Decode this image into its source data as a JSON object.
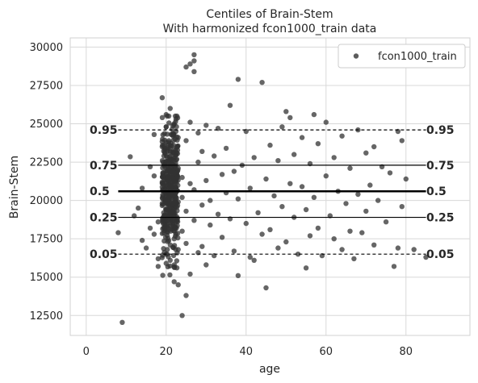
{
  "chart_data": {
    "type": "scatter",
    "title": "Centiles of Brain-Stem",
    "subtitle": "With harmonized fcon1000_train data",
    "xlabel": "age",
    "ylabel": "Brain-Stem",
    "xlim": [
      -4,
      96
    ],
    "ylim": [
      11200,
      30600
    ],
    "x_ticks": [
      0,
      20,
      40,
      60,
      80
    ],
    "y_ticks": [
      12500,
      15000,
      17500,
      20000,
      22500,
      25000,
      27500,
      30000
    ],
    "x_tick_labels": [
      "0",
      "20",
      "40",
      "60",
      "80"
    ],
    "y_tick_labels": [
      "12500",
      "15000",
      "17500",
      "20000",
      "22500",
      "25000",
      "27500",
      "30000"
    ],
    "grid": true,
    "legend": {
      "position": "top-right",
      "entries": [
        "fcon1000_train"
      ]
    },
    "point_color": "#333333",
    "series": [
      {
        "name": "fcon1000_train",
        "points": [
          [
            9,
            12050
          ],
          [
            8,
            17900
          ],
          [
            11,
            22850
          ],
          [
            12,
            19000
          ],
          [
            13,
            19500
          ],
          [
            14,
            17400
          ],
          [
            14,
            20800
          ],
          [
            15,
            16900
          ],
          [
            16,
            18200
          ],
          [
            16,
            22200
          ],
          [
            17,
            17800
          ],
          [
            17,
            21600
          ],
          [
            17,
            24300
          ],
          [
            18,
            18600
          ],
          [
            18,
            15700
          ],
          [
            18,
            16200
          ],
          [
            19,
            26700
          ],
          [
            19,
            19800
          ],
          [
            19,
            21200
          ],
          [
            19,
            23500
          ],
          [
            20,
            25600
          ],
          [
            20,
            24800
          ],
          [
            20,
            16500
          ],
          [
            20,
            15900
          ],
          [
            20,
            18900
          ],
          [
            20,
            20300
          ],
          [
            21,
            26000
          ],
          [
            21,
            17100
          ],
          [
            21,
            22700
          ],
          [
            21,
            19400
          ],
          [
            21,
            21800
          ],
          [
            21,
            16100
          ],
          [
            22,
            25000
          ],
          [
            22,
            17500
          ],
          [
            22,
            20600
          ],
          [
            22,
            14700
          ],
          [
            22,
            23300
          ],
          [
            22,
            18300
          ],
          [
            23,
            14500
          ],
          [
            23,
            19900
          ],
          [
            23,
            22100
          ],
          [
            23,
            16800
          ],
          [
            23,
            24100
          ],
          [
            24,
            12500
          ],
          [
            24,
            21500
          ],
          [
            24,
            18000
          ],
          [
            24,
            20200
          ],
          [
            25,
            28700
          ],
          [
            25,
            13800
          ],
          [
            25,
            19300
          ],
          [
            25,
            23900
          ],
          [
            25,
            17200
          ],
          [
            26,
            28900
          ],
          [
            26,
            21100
          ],
          [
            26,
            15200
          ],
          [
            26,
            25100
          ],
          [
            27,
            29500
          ],
          [
            27,
            28400
          ],
          [
            27,
            29100
          ],
          [
            27,
            20700
          ],
          [
            27,
            18700
          ],
          [
            28,
            24400
          ],
          [
            28,
            22500
          ],
          [
            28,
            16600
          ],
          [
            29,
            19700
          ],
          [
            29,
            17000
          ],
          [
            29,
            23200
          ],
          [
            30,
            21300
          ],
          [
            30,
            15800
          ],
          [
            30,
            24900
          ],
          [
            31,
            18400
          ],
          [
            31,
            20000
          ],
          [
            32,
            22900
          ],
          [
            32,
            16400
          ],
          [
            33,
            19100
          ],
          [
            33,
            24700
          ],
          [
            34,
            21700
          ],
          [
            34,
            17600
          ],
          [
            35,
            20500
          ],
          [
            35,
            23400
          ],
          [
            36,
            26200
          ],
          [
            36,
            18800
          ],
          [
            37,
            21900
          ],
          [
            37,
            16700
          ],
          [
            38,
            27900
          ],
          [
            38,
            15100
          ],
          [
            38,
            20100
          ],
          [
            39,
            22300
          ],
          [
            40,
            18500
          ],
          [
            40,
            24500
          ],
          [
            41,
            16300
          ],
          [
            41,
            20800
          ],
          [
            42,
            16100
          ],
          [
            42,
            22800
          ],
          [
            43,
            19200
          ],
          [
            44,
            27700
          ],
          [
            44,
            17800
          ],
          [
            45,
            14300
          ],
          [
            45,
            21400
          ],
          [
            46,
            23600
          ],
          [
            46,
            18100
          ],
          [
            47,
            20300
          ],
          [
            48,
            16900
          ],
          [
            48,
            22600
          ],
          [
            49,
            24800
          ],
          [
            49,
            19600
          ],
          [
            50,
            25800
          ],
          [
            50,
            17300
          ],
          [
            51,
            21100
          ],
          [
            51,
            25400
          ],
          [
            52,
            18900
          ],
          [
            52,
            23000
          ],
          [
            53,
            16500
          ],
          [
            54,
            20900
          ],
          [
            54,
            24100
          ],
          [
            55,
            19400
          ],
          [
            55,
            15600
          ],
          [
            56,
            22400
          ],
          [
            56,
            17700
          ],
          [
            57,
            25600
          ],
          [
            57,
            20200
          ],
          [
            58,
            18200
          ],
          [
            58,
            23700
          ],
          [
            59,
            16400
          ],
          [
            60,
            25100
          ],
          [
            60,
            21600
          ],
          [
            61,
            19000
          ],
          [
            62,
            22800
          ],
          [
            62,
            17500
          ],
          [
            63,
            20600
          ],
          [
            64,
            24200
          ],
          [
            64,
            16800
          ],
          [
            65,
            19800
          ],
          [
            66,
            22100
          ],
          [
            66,
            18000
          ],
          [
            67,
            16200
          ],
          [
            68,
            24600
          ],
          [
            68,
            20400
          ],
          [
            69,
            17900
          ],
          [
            70,
            23100
          ],
          [
            70,
            19300
          ],
          [
            71,
            21000
          ],
          [
            72,
            23500
          ],
          [
            72,
            17100
          ],
          [
            73,
            20000
          ],
          [
            74,
            22200
          ],
          [
            75,
            18600
          ],
          [
            76,
            21800
          ],
          [
            77,
            15700
          ],
          [
            78,
            24500
          ],
          [
            78,
            16900
          ],
          [
            79,
            23900
          ],
          [
            79,
            19600
          ],
          [
            80,
            21400
          ],
          [
            82,
            16800
          ],
          [
            85,
            16300
          ]
        ]
      }
    ],
    "dense_cluster": {
      "x_range": [
        19,
        23
      ],
      "y_range": [
        15000,
        25500
      ]
    },
    "centile_lines": [
      {
        "label": "0.05",
        "style": "dashed",
        "x": [
          8,
          85
        ],
        "y": [
          16500,
          16500
        ]
      },
      {
        "label": "0.25",
        "style": "solid",
        "x": [
          8,
          85
        ],
        "y": [
          18900,
          18900
        ]
      },
      {
        "label": "0.5",
        "style": "solid-bold",
        "x": [
          8,
          85
        ],
        "y": [
          20600,
          20600
        ]
      },
      {
        "label": "0.75",
        "style": "solid",
        "x": [
          8,
          85
        ],
        "y": [
          22300,
          22300
        ]
      },
      {
        "label": "0.95",
        "style": "dashed",
        "x": [
          8,
          85
        ],
        "y": [
          24600,
          24600
        ]
      }
    ]
  }
}
